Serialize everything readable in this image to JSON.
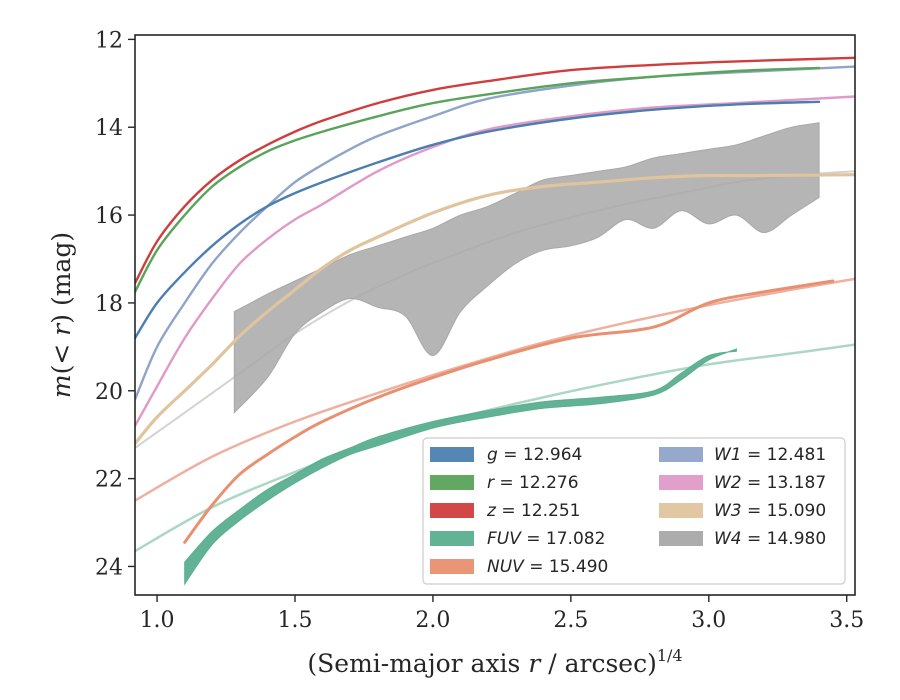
{
  "chart_data": {
    "type": "line",
    "xlabel": "(Semi-major axis r / arcsec)^1/4",
    "xlabel_parts": {
      "prefix": "(Semi-major axis ",
      "var": "r",
      "mid": " / arcsec)",
      "exp": "1/4"
    },
    "ylabel": "m(< r) (mag)",
    "ylabel_parts": {
      "m": "m",
      "open": "(",
      "lt": "< ",
      "r": "r",
      "close": ") (mag)"
    },
    "xlim": [
      0.92,
      3.53
    ],
    "ylim": [
      24.65,
      11.9
    ],
    "y_inverted": true,
    "x_ticks": [
      1.0,
      1.5,
      2.0,
      2.5,
      3.0,
      3.5
    ],
    "x_tick_labels": [
      "1.0",
      "1.5",
      "2.0",
      "2.5",
      "3.0",
      "3.5"
    ],
    "y_ticks": [
      12,
      14,
      16,
      18,
      20,
      22,
      24
    ],
    "y_tick_labels": [
      "12",
      "14",
      "16",
      "18",
      "20",
      "22",
      "24"
    ],
    "grid": false,
    "legend_position": "lower-right",
    "series": [
      {
        "name": "g",
        "value": "12.964",
        "color": "#4c7fb0",
        "band": false,
        "width": 2.4,
        "x": [
          0.92,
          1.0,
          1.1,
          1.2,
          1.3,
          1.4,
          1.5,
          1.6,
          1.8,
          2.0,
          2.2,
          2.5,
          2.8,
          3.1,
          3.4
        ],
        "y": [
          18.8,
          18.0,
          17.3,
          16.7,
          16.2,
          15.8,
          15.5,
          15.25,
          14.8,
          14.4,
          14.1,
          13.8,
          13.6,
          13.48,
          13.42
        ]
      },
      {
        "name": "r",
        "value": "12.276",
        "color": "#5aa35a",
        "band": false,
        "width": 2.4,
        "x": [
          0.92,
          1.0,
          1.1,
          1.2,
          1.3,
          1.4,
          1.5,
          1.6,
          1.8,
          2.0,
          2.2,
          2.5,
          2.8,
          3.1,
          3.4
        ],
        "y": [
          17.75,
          16.8,
          16.0,
          15.35,
          14.9,
          14.55,
          14.3,
          14.1,
          13.75,
          13.45,
          13.25,
          13.0,
          12.85,
          12.72,
          12.65
        ]
      },
      {
        "name": "z",
        "value": "12.251",
        "color": "#d03d3d",
        "band": false,
        "width": 2.4,
        "x": [
          0.92,
          1.0,
          1.1,
          1.2,
          1.3,
          1.4,
          1.5,
          1.6,
          1.8,
          2.0,
          2.2,
          2.5,
          2.8,
          3.1,
          3.53
        ],
        "y": [
          17.55,
          16.6,
          15.8,
          15.2,
          14.75,
          14.4,
          14.1,
          13.85,
          13.45,
          13.15,
          12.95,
          12.7,
          12.58,
          12.5,
          12.42
        ]
      },
      {
        "name": "FUV",
        "value": "17.082",
        "color": "#5aaf90",
        "band": true,
        "width": 2.4,
        "x": [
          1.1,
          1.2,
          1.3,
          1.4,
          1.5,
          1.6,
          1.7,
          1.8,
          2.0,
          2.2,
          2.4,
          2.6,
          2.8,
          2.9,
          3.0,
          3.1
        ],
        "y_low": [
          24.4,
          23.5,
          22.95,
          22.5,
          22.1,
          21.75,
          21.45,
          21.25,
          20.85,
          20.6,
          20.4,
          20.3,
          20.1,
          19.75,
          19.3,
          19.05
        ],
        "y_high": [
          23.9,
          23.2,
          22.7,
          22.25,
          21.9,
          21.55,
          21.3,
          21.05,
          20.7,
          20.45,
          20.25,
          20.15,
          20.0,
          19.6,
          19.2,
          19.1
        ]
      },
      {
        "name": "NUV",
        "value": "15.490",
        "color": "#e89070",
        "band": false,
        "width": 3.0,
        "x": [
          1.1,
          1.2,
          1.3,
          1.4,
          1.5,
          1.6,
          1.8,
          2.0,
          2.2,
          2.5,
          2.8,
          3.0,
          3.2,
          3.45
        ],
        "y": [
          23.45,
          22.6,
          21.9,
          21.45,
          21.05,
          20.7,
          20.15,
          19.7,
          19.3,
          18.8,
          18.55,
          18.0,
          17.75,
          17.5
        ]
      },
      {
        "name": "W1",
        "value": "12.481",
        "color": "#8ea4c8",
        "band": false,
        "width": 2.4,
        "x": [
          0.92,
          1.0,
          1.1,
          1.2,
          1.3,
          1.4,
          1.5,
          1.6,
          1.7,
          1.8,
          2.0,
          2.2,
          2.5,
          2.8,
          3.1,
          3.53
        ],
        "y": [
          20.2,
          19.0,
          18.0,
          17.1,
          16.4,
          15.8,
          15.25,
          14.85,
          14.5,
          14.2,
          13.75,
          13.35,
          13.05,
          12.85,
          12.75,
          12.62
        ]
      },
      {
        "name": "W2",
        "value": "13.187",
        "color": "#e09ac8",
        "band": false,
        "width": 2.4,
        "x": [
          0.92,
          1.0,
          1.1,
          1.2,
          1.3,
          1.4,
          1.5,
          1.6,
          1.8,
          2.0,
          2.2,
          2.5,
          2.8,
          3.1,
          3.53
        ],
        "y": [
          20.8,
          19.9,
          18.8,
          17.9,
          17.1,
          16.55,
          16.1,
          15.75,
          15.0,
          14.45,
          14.05,
          13.75,
          13.55,
          13.45,
          13.3
        ]
      },
      {
        "name": "W3",
        "value": "15.090",
        "color": "#e0c49e",
        "band": false,
        "width": 3.2,
        "x": [
          0.92,
          1.0,
          1.1,
          1.2,
          1.3,
          1.4,
          1.5,
          1.6,
          1.7,
          1.8,
          2.0,
          2.2,
          2.4,
          2.6,
          2.8,
          3.0,
          3.2,
          3.53
        ],
        "y": [
          21.2,
          20.6,
          20.0,
          19.4,
          18.75,
          18.2,
          17.7,
          17.2,
          16.8,
          16.5,
          15.95,
          15.55,
          15.35,
          15.25,
          15.15,
          15.1,
          15.1,
          15.08
        ]
      },
      {
        "name": "W4",
        "value": "14.980",
        "color": "#a8a8a8",
        "band": true,
        "width": 2.0,
        "x": [
          1.28,
          1.4,
          1.5,
          1.6,
          1.7,
          1.8,
          1.9,
          2.0,
          2.1,
          2.2,
          2.3,
          2.4,
          2.5,
          2.6,
          2.7,
          2.8,
          2.9,
          3.0,
          3.1,
          3.2,
          3.3,
          3.4
        ],
        "y_low": [
          20.5,
          19.7,
          18.7,
          18.2,
          17.9,
          18.1,
          18.3,
          19.2,
          18.2,
          17.6,
          17.1,
          16.8,
          16.7,
          16.5,
          16.1,
          16.3,
          15.9,
          16.2,
          16.0,
          16.4,
          16.0,
          15.6
        ],
        "y_high": [
          18.2,
          17.8,
          17.5,
          17.2,
          16.9,
          16.7,
          16.5,
          16.3,
          16.0,
          15.8,
          15.5,
          15.2,
          15.1,
          15.0,
          14.9,
          14.7,
          14.6,
          14.5,
          14.4,
          14.2,
          14.0,
          13.9
        ]
      }
    ],
    "faint_lines": [
      {
        "color": "#e07050",
        "opacity": 0.55,
        "width": 2.5,
        "x": [
          0.92,
          1.2,
          1.5,
          1.8,
          2.1,
          2.4,
          2.7,
          3.0,
          3.3,
          3.53
        ],
        "y": [
          22.5,
          21.5,
          20.7,
          20.05,
          19.45,
          18.9,
          18.45,
          18.05,
          17.7,
          17.45
        ]
      },
      {
        "color": "#5aaf90",
        "opacity": 0.5,
        "width": 2.5,
        "x": [
          0.92,
          1.2,
          1.5,
          1.8,
          2.1,
          2.4,
          2.7,
          3.0,
          3.3,
          3.53
        ],
        "y": [
          23.65,
          22.65,
          21.85,
          21.15,
          20.6,
          20.15,
          19.75,
          19.4,
          19.15,
          18.95
        ]
      },
      {
        "color": "#b5b5b5",
        "opacity": 0.6,
        "width": 2.0,
        "x": [
          0.92,
          1.1,
          1.3,
          1.5,
          1.7,
          1.9,
          2.1,
          2.3,
          2.5,
          2.7,
          2.9,
          3.1,
          3.3,
          3.53
        ],
        "y": [
          21.3,
          20.5,
          19.6,
          18.7,
          17.95,
          17.35,
          16.85,
          16.4,
          16.05,
          15.75,
          15.5,
          15.25,
          15.1,
          15.0
        ]
      }
    ]
  }
}
